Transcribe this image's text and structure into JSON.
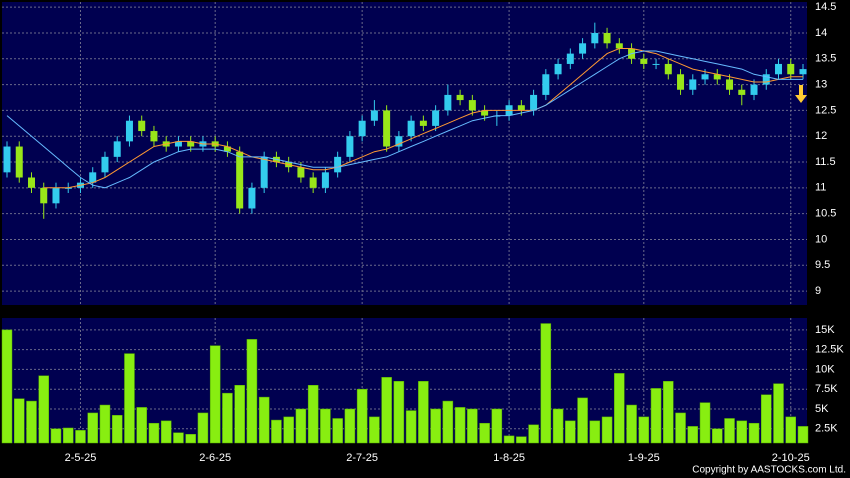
{
  "copyright": "Copyright by AASTOCKS.com Ltd.",
  "chart_data": [
    {
      "type": "candlestick",
      "categories": [
        null,
        null,
        null,
        null,
        null,
        null,
        "2-5-25",
        null,
        null,
        null,
        null,
        null,
        null,
        null,
        null,
        null,
        null,
        "2-6-25",
        null,
        null,
        null,
        null,
        null,
        null,
        null,
        null,
        null,
        null,
        null,
        "2-7-25",
        null,
        null,
        null,
        null,
        null,
        null,
        null,
        null,
        null,
        null,
        null,
        "1-8-25",
        null,
        null,
        null,
        null,
        null,
        null,
        null,
        null,
        null,
        null,
        "1-9-25",
        null,
        null,
        null,
        null,
        null,
        null,
        null,
        null,
        null,
        null,
        null,
        "2-10-25",
        null
      ],
      "open": [
        11.3,
        11.8,
        11.2,
        11.0,
        10.7,
        11.0,
        11.0,
        11.1,
        11.3,
        11.6,
        11.9,
        12.3,
        12.1,
        11.9,
        11.8,
        11.9,
        11.8,
        11.9,
        11.8,
        11.7,
        10.6,
        11.0,
        11.6,
        11.5,
        11.4,
        11.2,
        11.0,
        11.3,
        11.6,
        12.0,
        12.3,
        12.5,
        11.8,
        12.0,
        12.3,
        12.2,
        12.5,
        12.8,
        12.7,
        12.5,
        12.4,
        12.4,
        12.6,
        12.5,
        12.8,
        13.2,
        13.4,
        13.6,
        13.8,
        14.0,
        13.8,
        13.7,
        13.5,
        13.4,
        13.4,
        13.2,
        12.9,
        13.1,
        13.2,
        13.1,
        12.9,
        12.8,
        13.0,
        13.2,
        13.4,
        13.2
      ],
      "high": [
        11.9,
        11.9,
        11.3,
        11.1,
        11.1,
        11.1,
        11.2,
        11.4,
        11.7,
        12.0,
        12.4,
        12.4,
        12.2,
        12.0,
        12.0,
        12.0,
        12.0,
        12.0,
        11.9,
        11.8,
        11.1,
        11.7,
        11.7,
        11.6,
        11.5,
        11.3,
        11.4,
        11.7,
        12.1,
        12.4,
        12.7,
        12.6,
        12.1,
        12.4,
        12.4,
        12.6,
        13.0,
        12.9,
        12.8,
        12.6,
        12.5,
        12.7,
        12.7,
        12.9,
        13.3,
        13.5,
        13.7,
        13.9,
        14.2,
        14.1,
        13.9,
        13.8,
        13.6,
        13.5,
        13.5,
        13.3,
        13.2,
        13.3,
        13.3,
        13.2,
        13.0,
        13.1,
        13.3,
        13.5,
        13.5,
        13.4
      ],
      "low": [
        11.2,
        11.1,
        10.9,
        10.4,
        10.6,
        10.9,
        10.9,
        11.0,
        11.2,
        11.5,
        11.8,
        12.0,
        11.8,
        11.7,
        11.7,
        11.7,
        11.7,
        11.7,
        11.6,
        10.5,
        10.5,
        10.9,
        11.4,
        11.3,
        11.1,
        10.9,
        10.9,
        11.2,
        11.5,
        11.9,
        12.2,
        11.7,
        11.7,
        11.9,
        12.1,
        12.1,
        12.4,
        12.6,
        12.4,
        12.3,
        12.2,
        12.3,
        12.4,
        12.4,
        12.7,
        13.1,
        13.3,
        13.5,
        13.7,
        13.7,
        13.6,
        13.4,
        13.3,
        13.3,
        13.1,
        12.8,
        12.8,
        13.0,
        13.0,
        12.8,
        12.6,
        12.7,
        12.9,
        13.1,
        13.1,
        13.1
      ],
      "close": [
        11.8,
        11.2,
        11.0,
        10.7,
        11.0,
        11.0,
        11.1,
        11.3,
        11.6,
        11.9,
        12.3,
        12.1,
        11.9,
        11.8,
        11.9,
        11.8,
        11.9,
        11.8,
        11.7,
        10.6,
        11.0,
        11.6,
        11.5,
        11.4,
        11.2,
        11.0,
        11.3,
        11.6,
        12.0,
        12.3,
        12.5,
        11.8,
        12.0,
        12.3,
        12.2,
        12.5,
        12.8,
        12.7,
        12.5,
        12.4,
        12.4,
        12.6,
        12.5,
        12.8,
        13.2,
        13.4,
        13.6,
        13.8,
        14.0,
        13.8,
        13.7,
        13.5,
        13.4,
        13.4,
        13.2,
        12.9,
        13.1,
        13.2,
        13.1,
        12.9,
        12.8,
        13.0,
        13.2,
        13.4,
        13.2,
        13.3
      ],
      "up_color": "#33ccee",
      "down_color": "#99e619",
      "series": [
        {
          "color": "#ff9933",
          "values": [
            null,
            null,
            null,
            11.0,
            11.0,
            11.0,
            11.05,
            11.1,
            11.2,
            11.35,
            11.5,
            11.65,
            11.8,
            11.85,
            11.9,
            11.9,
            11.85,
            11.85,
            11.8,
            11.7,
            11.6,
            11.55,
            11.5,
            11.45,
            11.4,
            11.35,
            11.35,
            11.4,
            11.5,
            11.6,
            11.7,
            11.75,
            11.85,
            11.95,
            12.05,
            12.15,
            12.25,
            12.35,
            12.45,
            12.5,
            12.5,
            12.5,
            12.5,
            12.5,
            12.6,
            12.8,
            13.0,
            13.2,
            13.4,
            13.6,
            13.7,
            13.7,
            13.65,
            13.6,
            13.5,
            13.4,
            13.3,
            13.25,
            13.2,
            13.15,
            13.1,
            13.05,
            13.05,
            13.1,
            13.15,
            13.15
          ]
        },
        {
          "color": "#66bbff",
          "values": [
            12.4,
            12.2,
            12.0,
            11.8,
            11.6,
            11.4,
            11.2,
            11.05,
            11.0,
            11.1,
            11.2,
            11.35,
            11.5,
            11.6,
            11.7,
            11.75,
            11.75,
            11.75,
            11.7,
            11.6,
            11.6,
            11.6,
            11.55,
            11.5,
            11.45,
            11.4,
            11.4,
            11.4,
            11.45,
            11.5,
            11.55,
            11.6,
            11.7,
            11.8,
            11.9,
            12.0,
            12.1,
            12.2,
            12.3,
            12.35,
            12.4,
            12.4,
            12.45,
            12.5,
            12.6,
            12.75,
            12.9,
            13.05,
            13.2,
            13.35,
            13.5,
            13.6,
            13.65,
            13.65,
            13.6,
            13.55,
            13.5,
            13.45,
            13.4,
            13.35,
            13.3,
            13.2,
            13.15,
            13.1,
            13.1,
            13.1
          ]
        }
      ],
      "ylim": [
        8.73,
        14.6
      ],
      "yticks": [
        9,
        9.5,
        10,
        10.5,
        11,
        11.5,
        12,
        12.5,
        13,
        13.5,
        14,
        14.5
      ],
      "grid": true
    },
    {
      "type": "bar",
      "values": [
        15000,
        6300,
        6000,
        9200,
        2500,
        2600,
        2300,
        4500,
        5500,
        4200,
        12000,
        5200,
        3200,
        3500,
        2000,
        1800,
        4500,
        13000,
        7000,
        8000,
        13800,
        6500,
        3600,
        4000,
        5000,
        8000,
        5000,
        3800,
        5000,
        7500,
        4000,
        9000,
        8500,
        4800,
        8500,
        5000,
        6000,
        5200,
        5000,
        3200,
        5000,
        1600,
        1500,
        3000,
        15800,
        5000,
        3500,
        6400,
        3500,
        4000,
        9500,
        5500,
        4000,
        7600,
        8500,
        4500,
        2800,
        5800,
        2500,
        3800,
        3500,
        3200,
        6800,
        8200,
        4000,
        2800
      ],
      "color": "#88ee11",
      "ylim": [
        700,
        16500
      ],
      "yticks": [
        {
          "value": 2500,
          "label": "2.5K"
        },
        {
          "value": 5000,
          "label": "5K"
        },
        {
          "value": 7500,
          "label": "7.5K"
        },
        {
          "value": 10000,
          "label": "10K"
        },
        {
          "value": 12500,
          "label": "12.5K"
        },
        {
          "value": 15000,
          "label": "15K"
        }
      ],
      "grid": true
    }
  ]
}
